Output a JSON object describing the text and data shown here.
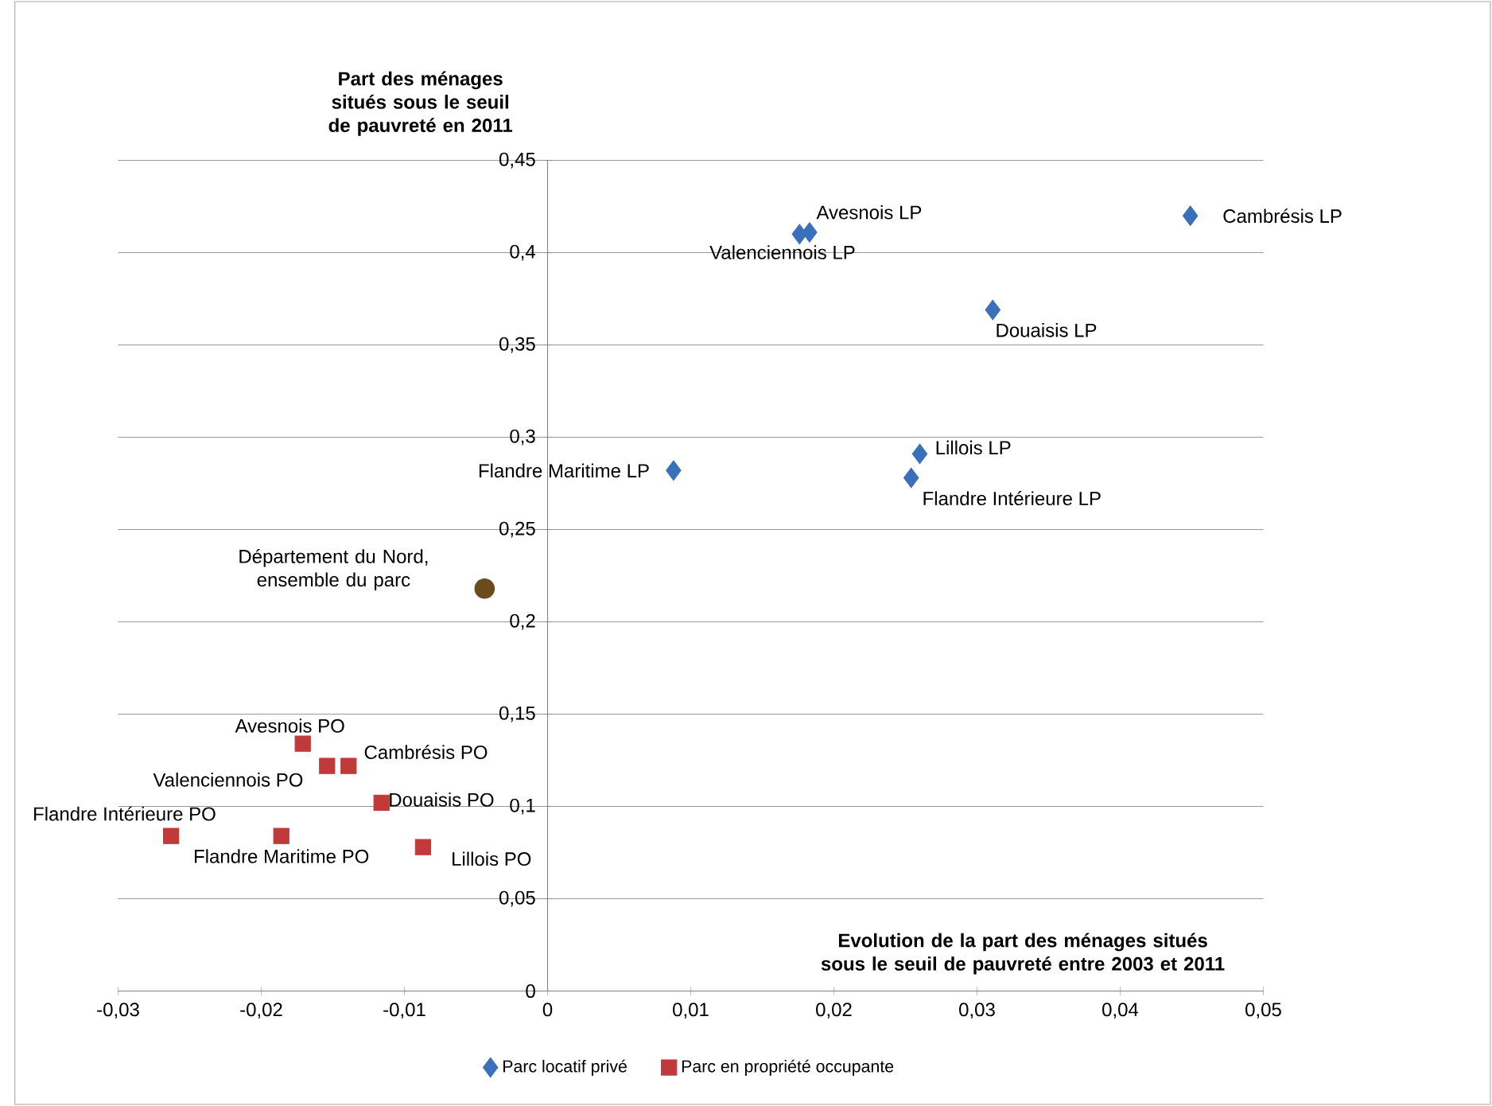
{
  "chart_data": {
    "type": "scatter",
    "ylabel": "Part des ménages situés sous le seuil de pauvreté en 2011",
    "xlabel": "Evolution de la part des ménages situés sous le seuil de pauvreté entre 2003 et 2011",
    "xlim": [
      -0.03,
      0.05
    ],
    "xticks": [
      {
        "value": -0.03,
        "label": "-0,03"
      },
      {
        "value": -0.02,
        "label": "-0,02"
      },
      {
        "value": -0.01,
        "label": "-0,01"
      },
      0,
      {
        "value": 0.01,
        "label": "0,01"
      },
      {
        "value": 0.02,
        "label": "0,02"
      },
      {
        "value": 0.03,
        "label": "0,03"
      },
      {
        "value": 0.04,
        "label": "0,04"
      },
      {
        "value": 0.05,
        "label": "0,05"
      }
    ],
    "ylim": [
      0,
      0.45
    ],
    "yticks": [
      0,
      {
        "value": 0.05,
        "label": "0,05"
      },
      {
        "value": 0.1,
        "label": "0,1"
      },
      {
        "value": 0.15,
        "label": "0,15"
      },
      {
        "value": 0.2,
        "label": "0,2"
      },
      {
        "value": 0.25,
        "label": "0,25"
      },
      {
        "value": 0.3,
        "label": "0,3"
      },
      {
        "value": 0.35,
        "label": "0,35"
      },
      {
        "value": 0.4,
        "label": "0,4"
      },
      {
        "value": 0.45,
        "label": "0,45"
      }
    ],
    "grid": "y",
    "legend": "bottom",
    "series": [
      {
        "name": "Parc locatif privé",
        "color": "#3a70b9",
        "marker": "diamond",
        "x": [
          0.0183,
          0.0176,
          0.0449,
          0.0311,
          0.026,
          0.0254,
          0.0088
        ],
        "values": [
          0.411,
          0.41,
          0.42,
          0.369,
          0.291,
          0.278,
          0.282
        ]
      },
      {
        "name": "Parc en propriété occupante",
        "color": "#c0393b",
        "marker": "square",
        "x": [
          -0.0171,
          -0.0154,
          -0.0139,
          -0.0116,
          -0.0087,
          -0.0186,
          -0.0263
        ],
        "values": [
          0.134,
          0.122,
          0.122,
          0.102,
          0.078,
          0.084,
          0.084
        ]
      },
      {
        "color": "#6b4a1b",
        "marker": "circle",
        "x": [
          -0.0044
        ],
        "values": [
          0.218
        ]
      }
    ],
    "annotations": [
      {
        "text": "Avesnois LP",
        "x": 0.0183,
        "y": 0.411
      },
      {
        "text": "Valenciennois LP",
        "x": 0.0176,
        "y": 0.41
      },
      {
        "text": "Cambrésis LP",
        "x": 0.0449,
        "y": 0.42
      },
      {
        "text": "Douaisis LP",
        "x": 0.0311,
        "y": 0.369
      },
      {
        "text": "Lillois LP",
        "x": 0.026,
        "y": 0.291
      },
      {
        "text": "Flandre Intérieure LP",
        "x": 0.0254,
        "y": 0.278
      },
      {
        "text": "Flandre Maritime LP",
        "x": 0.0088,
        "y": 0.282
      },
      {
        "text": "Département du Nord, ensemble du parc",
        "x": -0.0044,
        "y": 0.218
      },
      {
        "text": "Avesnois PO",
        "x": -0.0171,
        "y": 0.134
      },
      {
        "text": "Valenciennois PO",
        "x": -0.0154,
        "y": 0.122
      },
      {
        "text": "Cambrésis PO",
        "x": -0.0139,
        "y": 0.122
      },
      {
        "text": "Douaisis PO",
        "x": -0.0116,
        "y": 0.102
      },
      {
        "text": "Lillois PO",
        "x": -0.0087,
        "y": 0.078
      },
      {
        "text": "Flandre Maritime PO",
        "x": -0.0186,
        "y": 0.084
      },
      {
        "text": "Flandre Intérieure PO",
        "x": -0.0263,
        "y": 0.084
      }
    ]
  }
}
